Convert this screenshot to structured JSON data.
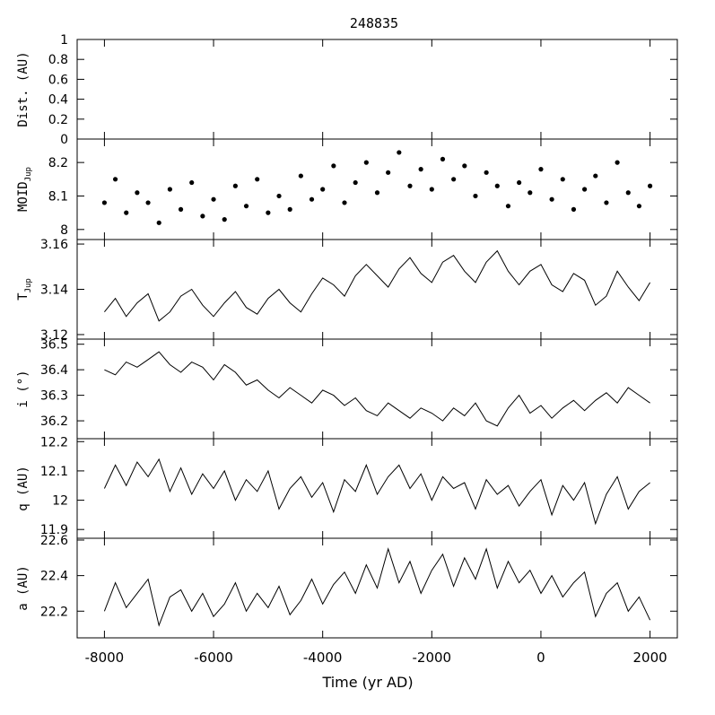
{
  "title": "248835",
  "chart_data": [
    {
      "type": "line",
      "ylabel": "Dist. (AU)",
      "ylim": [
        0,
        1
      ],
      "yticks": [
        0,
        0.2,
        0.4,
        0.6,
        0.8,
        1
      ],
      "ytick_labels": [
        "0",
        "0.2",
        "0.4",
        "0.6",
        "0.8",
        "1"
      ],
      "xlim": [
        -8500,
        2500
      ],
      "series": []
    },
    {
      "type": "scatter",
      "ylabel": "MOID",
      "ylabel_sub": "Jup",
      "ylim": [
        7.97,
        8.27
      ],
      "yticks": [
        8,
        8.1,
        8.2
      ],
      "ytick_labels": [
        "8",
        "8.1",
        "8.2"
      ],
      "xlim": [
        -8500,
        2500
      ],
      "series": [
        {
          "x": [
            -8000,
            -7800,
            -7600,
            -7400,
            -7200,
            -7000,
            -6800,
            -6600,
            -6400,
            -6200,
            -6000,
            -5800,
            -5600,
            -5400,
            -5200,
            -5000,
            -4800,
            -4600,
            -4400,
            -4200,
            -4000,
            -3800,
            -3600,
            -3400,
            -3200,
            -3000,
            -2800,
            -2600,
            -2400,
            -2200,
            -2000,
            -1800,
            -1600,
            -1400,
            -1200,
            -1000,
            -800,
            -600,
            -400,
            -200,
            0,
            200,
            400,
            600,
            800,
            1000,
            1200,
            1400,
            1600,
            1800,
            2000
          ],
          "y": [
            8.08,
            8.15,
            8.05,
            8.11,
            8.08,
            8.02,
            8.12,
            8.06,
            8.14,
            8.04,
            8.09,
            8.03,
            8.13,
            8.07,
            8.15,
            8.05,
            8.1,
            8.06,
            8.16,
            8.09,
            8.12,
            8.19,
            8.08,
            8.14,
            8.2,
            8.11,
            8.17,
            8.23,
            8.13,
            8.18,
            8.12,
            8.21,
            8.15,
            8.19,
            8.1,
            8.17,
            8.13,
            8.07,
            8.14,
            8.11,
            8.18,
            8.09,
            8.15,
            8.06,
            8.12,
            8.16,
            8.08,
            8.2,
            8.11,
            8.07,
            8.13
          ]
        }
      ]
    },
    {
      "type": "line",
      "ylabel": "T",
      "ylabel_sub": "Jup",
      "ylim": [
        3.118,
        3.162
      ],
      "yticks": [
        3.12,
        3.14,
        3.16
      ],
      "ytick_labels": [
        "3.12",
        "3.14",
        "3.16"
      ],
      "xlim": [
        -8500,
        2500
      ],
      "series": [
        {
          "x": [
            -8000,
            -7800,
            -7600,
            -7400,
            -7200,
            -7000,
            -6800,
            -6600,
            -6400,
            -6200,
            -6000,
            -5800,
            -5600,
            -5400,
            -5200,
            -5000,
            -4800,
            -4600,
            -4400,
            -4200,
            -4000,
            -3800,
            -3600,
            -3400,
            -3200,
            -3000,
            -2800,
            -2600,
            -2400,
            -2200,
            -2000,
            -1800,
            -1600,
            -1400,
            -1200,
            -1000,
            -800,
            -600,
            -400,
            -200,
            0,
            200,
            400,
            600,
            800,
            1000,
            1200,
            1400,
            1600,
            1800,
            2000
          ],
          "y": [
            3.13,
            3.136,
            3.128,
            3.134,
            3.138,
            3.126,
            3.13,
            3.137,
            3.14,
            3.133,
            3.128,
            3.134,
            3.139,
            3.132,
            3.129,
            3.136,
            3.14,
            3.134,
            3.13,
            3.138,
            3.145,
            3.142,
            3.137,
            3.146,
            3.151,
            3.146,
            3.141,
            3.149,
            3.154,
            3.147,
            3.143,
            3.152,
            3.155,
            3.148,
            3.143,
            3.152,
            3.157,
            3.148,
            3.142,
            3.148,
            3.151,
            3.142,
            3.139,
            3.147,
            3.144,
            3.133,
            3.137,
            3.148,
            3.141,
            3.135,
            3.143
          ]
        }
      ]
    },
    {
      "type": "line",
      "ylabel": "i (°)",
      "ylim": [
        36.13,
        36.52
      ],
      "yticks": [
        36.2,
        36.3,
        36.4,
        36.5
      ],
      "ytick_labels": [
        "36.2",
        "36.3",
        "36.4",
        "36.5"
      ],
      "xlim": [
        -8500,
        2500
      ],
      "series": [
        {
          "x": [
            -8000,
            -7800,
            -7600,
            -7400,
            -7200,
            -7000,
            -6800,
            -6600,
            -6400,
            -6200,
            -6000,
            -5800,
            -5600,
            -5400,
            -5200,
            -5000,
            -4800,
            -4600,
            -4400,
            -4200,
            -4000,
            -3800,
            -3600,
            -3400,
            -3200,
            -3000,
            -2800,
            -2600,
            -2400,
            -2200,
            -2000,
            -1800,
            -1600,
            -1400,
            -1200,
            -1000,
            -800,
            -600,
            -400,
            -200,
            0,
            200,
            400,
            600,
            800,
            1000,
            1200,
            1400,
            1600,
            1800,
            2000
          ],
          "y": [
            36.4,
            36.38,
            36.43,
            36.41,
            36.44,
            36.47,
            36.42,
            36.39,
            36.43,
            36.41,
            36.36,
            36.42,
            36.39,
            36.34,
            36.36,
            36.32,
            36.29,
            36.33,
            36.3,
            36.27,
            36.32,
            36.3,
            36.26,
            36.29,
            36.24,
            36.22,
            36.27,
            36.24,
            36.21,
            36.25,
            36.23,
            36.2,
            36.25,
            36.22,
            36.27,
            36.2,
            36.18,
            36.25,
            36.3,
            36.23,
            36.26,
            36.21,
            36.25,
            36.28,
            36.24,
            36.28,
            36.31,
            36.27,
            36.33,
            36.3,
            36.27
          ]
        }
      ]
    },
    {
      "type": "line",
      "ylabel": "q (AU)",
      "ylim": [
        11.87,
        12.21
      ],
      "yticks": [
        11.9,
        12,
        12.1,
        12.2
      ],
      "ytick_labels": [
        "11.9",
        "12",
        "12.1",
        "12.2"
      ],
      "xlim": [
        -8500,
        2500
      ],
      "series": [
        {
          "x": [
            -8000,
            -7800,
            -7600,
            -7400,
            -7200,
            -7000,
            -6800,
            -6600,
            -6400,
            -6200,
            -6000,
            -5800,
            -5600,
            -5400,
            -5200,
            -5000,
            -4800,
            -4600,
            -4400,
            -4200,
            -4000,
            -3800,
            -3600,
            -3400,
            -3200,
            -3000,
            -2800,
            -2600,
            -2400,
            -2200,
            -2000,
            -1800,
            -1600,
            -1400,
            -1200,
            -1000,
            -800,
            -600,
            -400,
            -200,
            0,
            200,
            400,
            600,
            800,
            1000,
            1200,
            1400,
            1600,
            1800,
            2000
          ],
          "y": [
            12.04,
            12.12,
            12.05,
            12.13,
            12.08,
            12.14,
            12.03,
            12.11,
            12.02,
            12.09,
            12.04,
            12.1,
            12.0,
            12.07,
            12.03,
            12.1,
            11.97,
            12.04,
            12.08,
            12.01,
            12.06,
            11.96,
            12.07,
            12.03,
            12.12,
            12.02,
            12.08,
            12.12,
            12.04,
            12.09,
            12.0,
            12.08,
            12.04,
            12.06,
            11.97,
            12.07,
            12.02,
            12.05,
            11.98,
            12.03,
            12.07,
            11.95,
            12.05,
            12.0,
            12.06,
            11.92,
            12.02,
            12.08,
            11.97,
            12.03,
            12.06
          ]
        }
      ]
    },
    {
      "type": "line",
      "ylabel": "a (AU)",
      "ylim": [
        22.05,
        22.61
      ],
      "yticks": [
        22.2,
        22.4,
        22.6
      ],
      "ytick_labels": [
        "22.2",
        "22.4",
        "22.6"
      ],
      "xlim": [
        -8500,
        2500
      ],
      "xticks": [
        -8000,
        -6000,
        -4000,
        -2000,
        0,
        2000
      ],
      "xtick_labels": [
        "-8000",
        "-6000",
        "-4000",
        "-2000",
        "0",
        "2000"
      ],
      "xlabel": "Time (yr AD)",
      "series": [
        {
          "x": [
            -8000,
            -7800,
            -7600,
            -7400,
            -7200,
            -7000,
            -6800,
            -6600,
            -6400,
            -6200,
            -6000,
            -5800,
            -5600,
            -5400,
            -5200,
            -5000,
            -4800,
            -4600,
            -4400,
            -4200,
            -4000,
            -3800,
            -3600,
            -3400,
            -3200,
            -3000,
            -2800,
            -2600,
            -2400,
            -2200,
            -2000,
            -1800,
            -1600,
            -1400,
            -1200,
            -1000,
            -800,
            -600,
            -400,
            -200,
            0,
            200,
            400,
            600,
            800,
            1000,
            1200,
            1400,
            1600,
            1800,
            2000
          ],
          "y": [
            22.2,
            22.36,
            22.22,
            22.3,
            22.38,
            22.12,
            22.28,
            22.32,
            22.2,
            22.3,
            22.17,
            22.24,
            22.36,
            22.2,
            22.3,
            22.22,
            22.34,
            22.18,
            22.26,
            22.38,
            22.24,
            22.35,
            22.42,
            22.3,
            22.46,
            22.33,
            22.55,
            22.36,
            22.48,
            22.3,
            22.43,
            22.52,
            22.34,
            22.5,
            22.38,
            22.55,
            22.33,
            22.48,
            22.36,
            22.43,
            22.3,
            22.4,
            22.28,
            22.36,
            22.42,
            22.17,
            22.3,
            22.36,
            22.2,
            22.28,
            22.15
          ]
        }
      ]
    }
  ]
}
